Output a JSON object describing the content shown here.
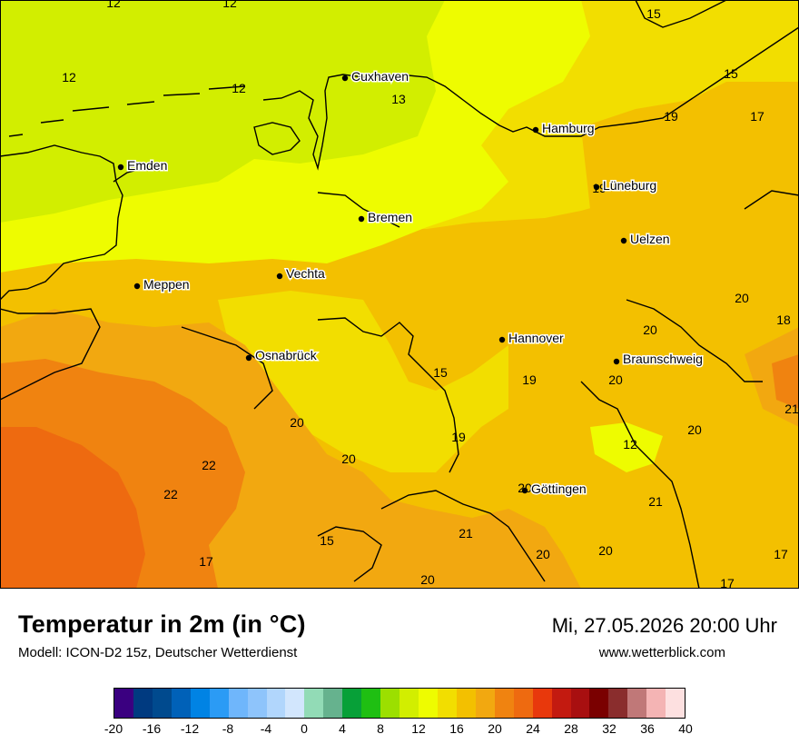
{
  "header": {
    "title": "Temperatur in 2m (in °C)",
    "model": "Modell: ICON-D2 15z, Deutscher Wetterdienst",
    "valid_time": "Mi, 27.05.2026 20:00 Uhr",
    "website": "www.wetterblick.com"
  },
  "colors": {
    "water": "#ffffff",
    "t12": "#d2ee00",
    "t14": "#eefc00",
    "t16": "#f2de00",
    "t18": "#f3c000",
    "t20": "#f2a810",
    "t22": "#f08310",
    "t24": "#ee6a10"
  },
  "cities": [
    {
      "name": "Cuxhaven"
    },
    {
      "name": "Hamburg"
    },
    {
      "name": "Emden"
    },
    {
      "name": "Lüneburg"
    },
    {
      "name": "Bremen"
    },
    {
      "name": "Uelzen"
    },
    {
      "name": "Meppen"
    },
    {
      "name": "Vechta"
    },
    {
      "name": "Hannover"
    },
    {
      "name": "Osnabrück"
    },
    {
      "name": "Braunschweig"
    },
    {
      "name": "Göttingen"
    }
  ],
  "values": [
    "12",
    "12",
    "15",
    "12",
    "12",
    "13",
    "15",
    "19",
    "17",
    "19",
    "20",
    "20",
    "18",
    "15",
    "19",
    "20",
    "21",
    "20",
    "12",
    "20",
    "22",
    "20",
    "22",
    "20",
    "21",
    "17",
    "15",
    "21",
    "20",
    "20",
    "17",
    "17",
    "20"
  ],
  "legend": {
    "colors": [
      "#3a0080",
      "#003a80",
      "#004a8e",
      "#0061b8",
      "#0083e4",
      "#2b9bf5",
      "#6fb6fb",
      "#8ec4fb",
      "#b1d6fc",
      "#d2e6fd",
      "#92dbb6",
      "#66b28e",
      "#07a038",
      "#1fbf12",
      "#9cdf00",
      "#d2ee00",
      "#eefc00",
      "#f2de00",
      "#f3c000",
      "#f2a810",
      "#f08310",
      "#ee6a10",
      "#e8380c",
      "#c31a10",
      "#a80f10",
      "#7a0000",
      "#8a2d2d",
      "#c07878",
      "#f4b4b4",
      "#fde0e0"
    ],
    "ticks": [
      "-20",
      "-16",
      "-12",
      "-8",
      "-4",
      "0",
      "4",
      "8",
      "12",
      "16",
      "20",
      "24",
      "28",
      "32",
      "36",
      "40"
    ]
  }
}
